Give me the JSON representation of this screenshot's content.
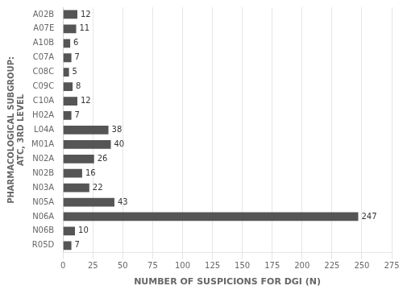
{
  "chart_data": {
    "type": "bar",
    "orientation": "horizontal",
    "categories": [
      "A02B",
      "A07E",
      "A10B",
      "C07A",
      "C08C",
      "C09C",
      "C10A",
      "H02A",
      "L04A",
      "M01A",
      "N02A",
      "N02B",
      "N03A",
      "N05A",
      "N06A",
      "N06B",
      "R05D"
    ],
    "values": [
      12,
      11,
      6,
      7,
      5,
      8,
      12,
      7,
      38,
      40,
      26,
      16,
      22,
      43,
      247,
      10,
      7
    ],
    "color": "#555555",
    "xlabel": "NUMBER OF SUSPICIONS FOR DGI (N)",
    "ylabel": "PHARMACOLOGICAL SUBGROUP:\nATC, 3RD LEVEL",
    "xlim": [
      0,
      275
    ],
    "xticks": [
      0,
      25,
      50,
      75,
      100,
      125,
      150,
      175,
      200,
      225,
      250,
      275
    ],
    "grid": true,
    "data_labels": true
  }
}
